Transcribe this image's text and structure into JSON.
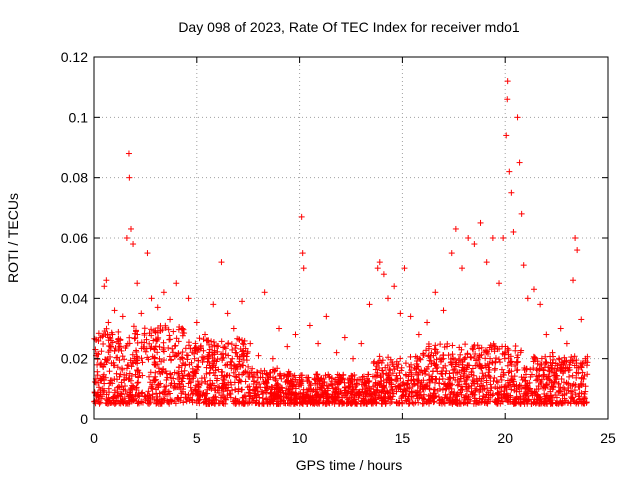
{
  "chart_data": {
    "type": "scatter",
    "title": "Day 098 of 2023, Rate Of TEC Index for receiver mdo1",
    "xlabel": "GPS time / hours",
    "ylabel": "ROTI / TECUs",
    "xlim": [
      0,
      25
    ],
    "ylim": [
      0,
      0.12
    ],
    "xticks": [
      0,
      5,
      10,
      15,
      20,
      25
    ],
    "xtick_labels": [
      "0",
      "5",
      "10",
      "15",
      "20",
      "25"
    ],
    "yticks": [
      0,
      0.02,
      0.04,
      0.06,
      0.08,
      0.1,
      0.12
    ],
    "ytick_labels": [
      "0",
      "0.02",
      "0.04",
      "0.06",
      "0.08",
      "0.1",
      "0.12"
    ],
    "grid": true,
    "marker": "+",
    "color": "#ff0000",
    "series": [
      {
        "name": "ROTI",
        "points": [
          [
            0.1,
            0.021
          ],
          [
            0.2,
            0.012
          ],
          [
            0.3,
            0.018
          ],
          [
            0.5,
            0.044
          ],
          [
            0.6,
            0.046
          ],
          [
            0.7,
            0.032
          ],
          [
            0.9,
            0.028
          ],
          [
            1.0,
            0.036
          ],
          [
            1.2,
            0.025
          ],
          [
            1.4,
            0.034
          ],
          [
            1.6,
            0.06
          ],
          [
            1.7,
            0.088
          ],
          [
            1.72,
            0.08
          ],
          [
            1.8,
            0.063
          ],
          [
            1.9,
            0.058
          ],
          [
            2.1,
            0.045
          ],
          [
            2.3,
            0.035
          ],
          [
            2.6,
            0.055
          ],
          [
            2.8,
            0.04
          ],
          [
            3.1,
            0.037
          ],
          [
            3.4,
            0.042
          ],
          [
            3.7,
            0.033
          ],
          [
            4.0,
            0.045
          ],
          [
            4.3,
            0.03
          ],
          [
            4.6,
            0.04
          ],
          [
            5.0,
            0.032
          ],
          [
            5.4,
            0.028
          ],
          [
            5.8,
            0.038
          ],
          [
            6.2,
            0.052
          ],
          [
            6.5,
            0.035
          ],
          [
            6.8,
            0.03
          ],
          [
            7.2,
            0.039
          ],
          [
            7.6,
            0.025
          ],
          [
            8.0,
            0.021
          ],
          [
            8.3,
            0.042
          ],
          [
            8.7,
            0.02
          ],
          [
            9.0,
            0.03
          ],
          [
            9.4,
            0.024
          ],
          [
            9.8,
            0.028
          ],
          [
            10.1,
            0.067
          ],
          [
            10.15,
            0.055
          ],
          [
            10.2,
            0.05
          ],
          [
            10.5,
            0.031
          ],
          [
            10.9,
            0.025
          ],
          [
            11.3,
            0.034
          ],
          [
            11.8,
            0.022
          ],
          [
            12.2,
            0.027
          ],
          [
            12.6,
            0.02
          ],
          [
            13.0,
            0.025
          ],
          [
            13.4,
            0.038
          ],
          [
            13.8,
            0.05
          ],
          [
            13.9,
            0.052
          ],
          [
            14.1,
            0.048
          ],
          [
            14.3,
            0.04
          ],
          [
            14.6,
            0.044
          ],
          [
            14.9,
            0.035
          ],
          [
            15.1,
            0.05
          ],
          [
            15.4,
            0.034
          ],
          [
            15.8,
            0.028
          ],
          [
            16.2,
            0.032
          ],
          [
            16.6,
            0.042
          ],
          [
            17.0,
            0.036
          ],
          [
            17.4,
            0.055
          ],
          [
            17.6,
            0.063
          ],
          [
            17.9,
            0.05
          ],
          [
            18.2,
            0.06
          ],
          [
            18.5,
            0.058
          ],
          [
            18.8,
            0.065
          ],
          [
            19.1,
            0.052
          ],
          [
            19.4,
            0.06
          ],
          [
            19.7,
            0.045
          ],
          [
            19.9,
            0.06
          ],
          [
            20.05,
            0.094
          ],
          [
            20.1,
            0.106
          ],
          [
            20.12,
            0.112
          ],
          [
            20.2,
            0.082
          ],
          [
            20.3,
            0.075
          ],
          [
            20.4,
            0.062
          ],
          [
            20.6,
            0.1
          ],
          [
            20.7,
            0.085
          ],
          [
            20.8,
            0.068
          ],
          [
            20.9,
            0.051
          ],
          [
            21.1,
            0.04
          ],
          [
            21.4,
            0.043
          ],
          [
            21.7,
            0.038
          ],
          [
            22.0,
            0.028
          ],
          [
            22.3,
            0.022
          ],
          [
            22.7,
            0.03
          ],
          [
            23.0,
            0.025
          ],
          [
            23.3,
            0.046
          ],
          [
            23.4,
            0.06
          ],
          [
            23.5,
            0.056
          ],
          [
            23.7,
            0.033
          ],
          [
            23.9,
            0.02
          ]
        ]
      }
    ]
  }
}
